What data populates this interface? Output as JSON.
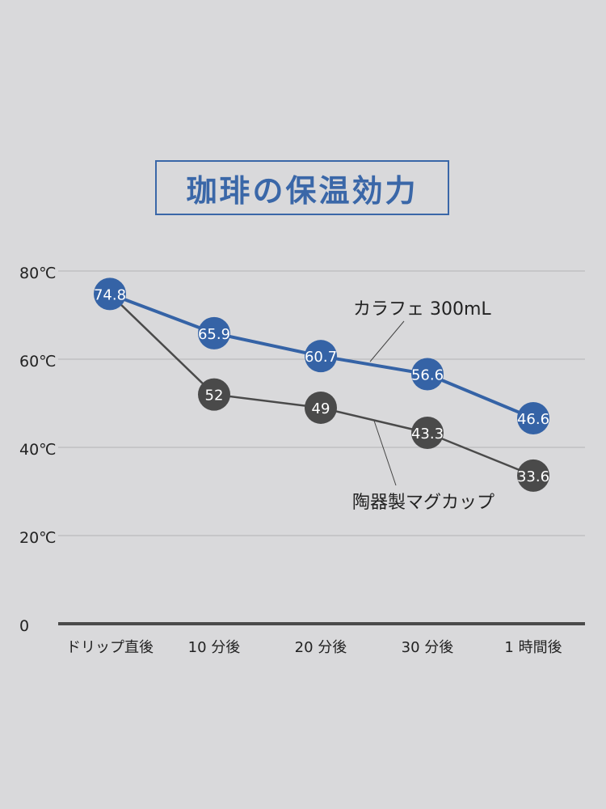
{
  "chart_data": {
    "type": "line",
    "title": "珈琲の保温効力",
    "categories": [
      "ドリップ直後",
      "10 分後",
      "20 分後",
      "30 分後",
      "1 時間後"
    ],
    "y_ticks": [
      "0",
      "20℃",
      "40℃",
      "60℃",
      "80℃"
    ],
    "y_tick_values": [
      0,
      20,
      40,
      60,
      80
    ],
    "ylim": [
      0,
      80
    ],
    "grid": true,
    "series": [
      {
        "name": "カラフェ 300mL",
        "values": [
          74.8,
          65.9,
          60.7,
          56.6,
          46.6
        ],
        "color": "#3563a6",
        "labels": [
          "74.8",
          "65.9",
          "60.7",
          "56.6",
          "46.6"
        ]
      },
      {
        "name": "陶器製マグカップ",
        "values": [
          74.8,
          52,
          49,
          43.3,
          33.6
        ],
        "color": "#4a4a4a",
        "labels": [
          "",
          "52",
          "49",
          "43.3",
          "33.6"
        ]
      }
    ]
  }
}
